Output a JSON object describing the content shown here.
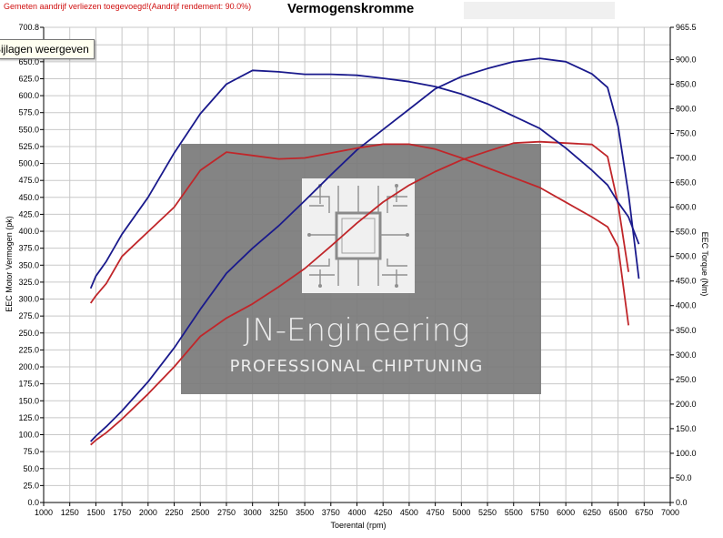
{
  "header": {
    "subtitle": "Gemeten aandrijf verliezen toegevoegd!(Aandrijf rendement: 90.0%)",
    "tooltip": "Bijlagen weergeven"
  },
  "watermark": {
    "name": "JN-Engineering",
    "tagline": "PROFESSIONAL CHIPTUNING"
  },
  "colors": {
    "blue": "#1a1a8c",
    "red": "#c0262a",
    "grid": "#c8c8c8",
    "watermark": "#7a7a7a"
  },
  "chart_data": {
    "type": "line",
    "title": "Vermogenskromme",
    "xlabel": "Toerental (rpm)",
    "ylabel": "EEC Motor Vermogen (pk)",
    "y2label": "EEC Torque (Nm)",
    "xlim": [
      1000,
      7000
    ],
    "ylim": [
      0,
      700.8
    ],
    "y2lim": [
      0,
      965.5
    ],
    "grid": true,
    "x_ticks": [
      "1000",
      "1250",
      "1500",
      "1750",
      "2000",
      "2250",
      "2500",
      "2750",
      "3000",
      "3250",
      "3500",
      "3750",
      "4000",
      "4250",
      "4500",
      "4750",
      "5000",
      "5250",
      "5500",
      "5750",
      "6000",
      "6250",
      "6500",
      "6750",
      "7000"
    ],
    "y_ticks": [
      {
        "value": 0,
        "label": "0.0"
      },
      {
        "value": 25,
        "label": "25.0"
      },
      {
        "value": 50,
        "label": "50.0"
      },
      {
        "value": 75,
        "label": "75.0"
      },
      {
        "value": 100,
        "label": "100.0"
      },
      {
        "value": 125,
        "label": "125.0"
      },
      {
        "value": 150,
        "label": "150.0"
      },
      {
        "value": 175,
        "label": "175.0"
      },
      {
        "value": 200,
        "label": "200.0"
      },
      {
        "value": 225,
        "label": "225.0"
      },
      {
        "value": 250,
        "label": "250.0"
      },
      {
        "value": 275,
        "label": "275.0"
      },
      {
        "value": 300,
        "label": "300.0"
      },
      {
        "value": 325,
        "label": "325.0"
      },
      {
        "value": 350,
        "label": "350.0"
      },
      {
        "value": 375,
        "label": "375.0"
      },
      {
        "value": 400,
        "label": "400.0"
      },
      {
        "value": 425,
        "label": "425.0"
      },
      {
        "value": 450,
        "label": "450.0"
      },
      {
        "value": 475,
        "label": "475.0"
      },
      {
        "value": 500,
        "label": "500.0"
      },
      {
        "value": 525,
        "label": "525.0"
      },
      {
        "value": 550,
        "label": "550.0"
      },
      {
        "value": 575,
        "label": "575.0"
      },
      {
        "value": 600,
        "label": "600.0"
      },
      {
        "value": 625,
        "label": "625.0"
      },
      {
        "value": 650,
        "label": "650.0"
      },
      {
        "value": 675,
        "label": "675.0"
      },
      {
        "value": 700.8,
        "label": "700.8"
      }
    ],
    "y2_ticks": [
      {
        "value": 0,
        "label": "0.0"
      },
      {
        "value": 50,
        "label": "50.0"
      },
      {
        "value": 100,
        "label": "100.0"
      },
      {
        "value": 150,
        "label": "150.0"
      },
      {
        "value": 200,
        "label": "200.0"
      },
      {
        "value": 250,
        "label": "250.0"
      },
      {
        "value": 300,
        "label": "300.0"
      },
      {
        "value": 350,
        "label": "350.0"
      },
      {
        "value": 400,
        "label": "400.0"
      },
      {
        "value": 450,
        "label": "450.0"
      },
      {
        "value": 500,
        "label": "500.0"
      },
      {
        "value": 550,
        "label": "550.0"
      },
      {
        "value": 600,
        "label": "600.0"
      },
      {
        "value": 650,
        "label": "650.0"
      },
      {
        "value": 700,
        "label": "700.0"
      },
      {
        "value": 750,
        "label": "750.0"
      },
      {
        "value": 800,
        "label": "800.0"
      },
      {
        "value": 850,
        "label": "850.0"
      },
      {
        "value": 900,
        "label": "900.0"
      },
      {
        "value": 965.5,
        "label": "965.5"
      }
    ],
    "series": [
      {
        "axis": "left",
        "color": "#1a1a8c",
        "x": [
          1450,
          1500,
          1600,
          1750,
          2000,
          2250,
          2500,
          2750,
          3000,
          3250,
          3500,
          3750,
          4000,
          4250,
          4500,
          4750,
          5000,
          5250,
          5500,
          5750,
          6000,
          6250,
          6400,
          6500,
          6600,
          6700
        ],
        "y": [
          90,
          98,
          112,
          135,
          178,
          228,
          285,
          338,
          375,
          408,
          445,
          483,
          520,
          550,
          580,
          610,
          628,
          640,
          650,
          655,
          650,
          632,
          612,
          555,
          455,
          330
        ]
      },
      {
        "axis": "left",
        "color": "#c0262a",
        "x": [
          1450,
          1500,
          1600,
          1750,
          2000,
          2250,
          2500,
          2750,
          3000,
          3250,
          3500,
          3750,
          4000,
          4250,
          4500,
          4750,
          5000,
          5250,
          5500,
          5750,
          6000,
          6250,
          6400,
          6500,
          6600
        ],
        "y": [
          85,
          92,
          103,
          123,
          160,
          200,
          245,
          272,
          293,
          318,
          345,
          378,
          412,
          443,
          468,
          488,
          505,
          518,
          530,
          532,
          530,
          528,
          510,
          440,
          340
        ]
      },
      {
        "axis": "right",
        "color": "#1a1a8c",
        "x": [
          1450,
          1500,
          1600,
          1750,
          2000,
          2250,
          2500,
          2750,
          3000,
          3250,
          3500,
          3750,
          4000,
          4250,
          4500,
          4750,
          5000,
          5250,
          5500,
          5750,
          6000,
          6250,
          6400,
          6500,
          6600,
          6700
        ],
        "y": [
          435,
          460,
          490,
          545,
          620,
          710,
          790,
          850,
          878,
          875,
          870,
          870,
          868,
          862,
          855,
          845,
          830,
          810,
          785,
          760,
          720,
          675,
          645,
          610,
          580,
          525
        ]
      },
      {
        "axis": "right",
        "color": "#c0262a",
        "x": [
          1450,
          1500,
          1600,
          1750,
          2000,
          2250,
          2500,
          2750,
          3000,
          3250,
          3500,
          3750,
          4000,
          4250,
          4500,
          4750,
          5000,
          5250,
          5500,
          5750,
          6000,
          6250,
          6400,
          6500,
          6600
        ],
        "y": [
          405,
          420,
          445,
          500,
          550,
          600,
          675,
          712,
          705,
          698,
          700,
          710,
          720,
          728,
          728,
          718,
          700,
          680,
          660,
          640,
          610,
          580,
          560,
          520,
          360
        ]
      }
    ]
  }
}
